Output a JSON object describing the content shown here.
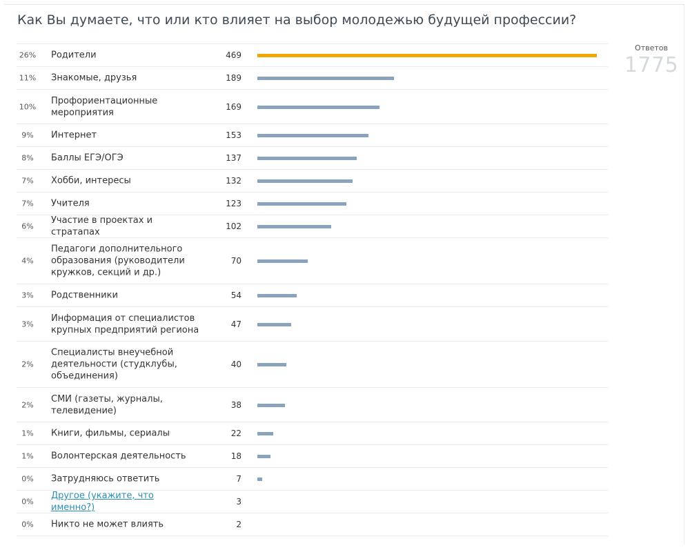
{
  "poll": {
    "title": "Как Вы думаете, что или кто влияет на выбор молодежью будущей профессии?",
    "responses_label": "Ответов",
    "responses_total": "1775",
    "max_value": 469,
    "colors": {
      "leader_bar": "#f0a800",
      "bar": "#8aa3bd",
      "link": "#2a8fb4"
    },
    "options": [
      {
        "percent": "26%",
        "label": "Родители",
        "count": 469,
        "lines": 1
      },
      {
        "percent": "11%",
        "label": "Знакомые, друзья",
        "count": 189,
        "lines": 1
      },
      {
        "percent": "10%",
        "label": "Профориентационные мероприятия",
        "count": 169,
        "lines": 2
      },
      {
        "percent": "9%",
        "label": "Интернет",
        "count": 153,
        "lines": 1
      },
      {
        "percent": "8%",
        "label": "Баллы ЕГЭ/ОГЭ",
        "count": 137,
        "lines": 1
      },
      {
        "percent": "7%",
        "label": "Хобби, интересы",
        "count": 132,
        "lines": 1
      },
      {
        "percent": "7%",
        "label": "Учителя",
        "count": 123,
        "lines": 1
      },
      {
        "percent": "6%",
        "label": "Участие в проектах и стратапах",
        "count": 102,
        "lines": 1
      },
      {
        "percent": "4%",
        "label": "Педагоги дополнительного образования (руководители кружков, секций и др.)",
        "count": 70,
        "lines": 3
      },
      {
        "percent": "3%",
        "label": "Родственники",
        "count": 54,
        "lines": 1
      },
      {
        "percent": "3%",
        "label": "Информация от специалистов крупных предприятий региона",
        "count": 47,
        "lines": 2
      },
      {
        "percent": "2%",
        "label": "Специалисты внеучебной деятельности (студклубы, объединения)",
        "count": 40,
        "lines": 3
      },
      {
        "percent": "2%",
        "label": "СМИ (газеты, журналы, телевидение)",
        "count": 38,
        "lines": 2
      },
      {
        "percent": "1%",
        "label": "Книги, фильмы, сериалы",
        "count": 22,
        "lines": 1
      },
      {
        "percent": "1%",
        "label": "Волонтерская деятельность",
        "count": 18,
        "lines": 1
      },
      {
        "percent": "0%",
        "label": "Затрудняюсь ответить",
        "count": 7,
        "lines": 1
      },
      {
        "percent": "0%",
        "label": "Другое (укажите, что именно?)",
        "count": 3,
        "lines": 1,
        "is_link": true
      },
      {
        "percent": "0%",
        "label": "Никто не может влиять",
        "count": 2,
        "lines": 1
      }
    ]
  }
}
